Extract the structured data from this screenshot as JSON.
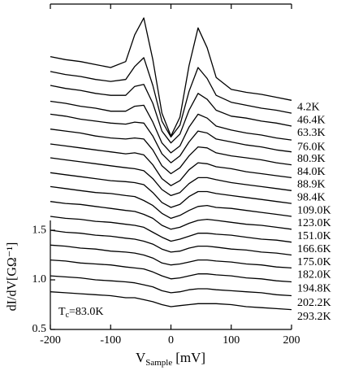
{
  "chart_data": {
    "type": "line",
    "x_label": {
      "text": "V",
      "subscript": "Sample",
      "unit": "[mV]"
    },
    "y_label": "dI/dV[GΩ⁻¹]",
    "annotation": {
      "text": "T",
      "subscript": "c",
      "rest": "=83.0K"
    },
    "x": [
      -200,
      -175,
      -150,
      -125,
      -100,
      -75,
      -60,
      -45,
      -30,
      -15,
      0,
      15,
      30,
      45,
      60,
      75,
      100,
      125,
      150,
      175,
      200
    ],
    "xlim": [
      -200,
      200
    ],
    "xticks": [
      -200,
      -100,
      0,
      100,
      200
    ],
    "ylim": [
      0.5,
      3.78
    ],
    "yticks": [
      0.5,
      {
        "value": 1,
        "label": "1.0"
      },
      1.5
    ],
    "series": [
      {
        "name": "4.2K",
        "color": "#000000",
        "values": [
          3.25,
          3.22,
          3.2,
          3.17,
          3.14,
          3.2,
          3.47,
          3.64,
          3.22,
          2.68,
          2.45,
          2.64,
          3.16,
          3.54,
          3.34,
          3.04,
          2.92,
          2.89,
          2.87,
          2.84,
          2.81
        ]
      },
      {
        "name": "46.4K",
        "color": "#000000",
        "values": [
          3.1,
          3.07,
          3.05,
          3.02,
          3.0,
          3.02,
          3.15,
          3.24,
          2.96,
          2.6,
          2.44,
          2.56,
          2.9,
          3.14,
          3.03,
          2.86,
          2.79,
          2.76,
          2.73,
          2.71,
          2.68
        ]
      },
      {
        "name": "63.3K",
        "color": "#000000",
        "values": [
          2.96,
          2.93,
          2.91,
          2.88,
          2.86,
          2.86,
          2.95,
          2.97,
          2.78,
          2.5,
          2.38,
          2.47,
          2.71,
          2.88,
          2.82,
          2.71,
          2.65,
          2.63,
          2.6,
          2.58,
          2.55
        ]
      },
      {
        "name": "76.0K",
        "color": "#000000",
        "values": [
          2.8,
          2.78,
          2.75,
          2.73,
          2.7,
          2.7,
          2.75,
          2.76,
          2.59,
          2.38,
          2.28,
          2.35,
          2.54,
          2.67,
          2.63,
          2.55,
          2.51,
          2.48,
          2.46,
          2.43,
          2.41
        ]
      },
      {
        "name": "80.9K",
        "color": "#000000",
        "values": [
          2.67,
          2.65,
          2.62,
          2.6,
          2.58,
          2.57,
          2.59,
          2.58,
          2.45,
          2.27,
          2.18,
          2.25,
          2.39,
          2.5,
          2.48,
          2.42,
          2.39,
          2.36,
          2.34,
          2.31,
          2.29
        ]
      },
      {
        "name": "84.0K",
        "color": "#000000",
        "values": [
          2.52,
          2.5,
          2.48,
          2.45,
          2.43,
          2.42,
          2.43,
          2.42,
          2.31,
          2.15,
          2.07,
          2.13,
          2.25,
          2.34,
          2.33,
          2.28,
          2.25,
          2.23,
          2.21,
          2.18,
          2.16
        ]
      },
      {
        "name": "88.9K",
        "color": "#000000",
        "values": [
          2.37,
          2.35,
          2.33,
          2.31,
          2.29,
          2.27,
          2.28,
          2.26,
          2.16,
          2.02,
          1.95,
          2.0,
          2.11,
          2.18,
          2.17,
          2.14,
          2.12,
          2.09,
          2.07,
          2.05,
          2.03
        ]
      },
      {
        "name": "98.4K",
        "color": "#000000",
        "values": [
          2.23,
          2.21,
          2.19,
          2.17,
          2.15,
          2.13,
          2.12,
          2.1,
          2.02,
          1.91,
          1.85,
          1.88,
          1.97,
          2.03,
          2.03,
          2.01,
          1.98,
          1.96,
          1.94,
          1.92,
          1.9
        ]
      },
      {
        "name": "109.0K",
        "color": "#000000",
        "values": [
          2.08,
          2.06,
          2.04,
          2.02,
          2.0,
          1.99,
          1.98,
          1.96,
          1.88,
          1.78,
          1.73,
          1.76,
          1.84,
          1.89,
          1.89,
          1.87,
          1.85,
          1.83,
          1.81,
          1.79,
          1.77
        ]
      },
      {
        "name": "123.0K",
        "color": "#000000",
        "values": [
          1.94,
          1.92,
          1.9,
          1.88,
          1.87,
          1.85,
          1.84,
          1.8,
          1.75,
          1.67,
          1.62,
          1.65,
          1.7,
          1.74,
          1.75,
          1.73,
          1.72,
          1.7,
          1.68,
          1.66,
          1.64
        ]
      },
      {
        "name": "151.0K",
        "color": "#000000",
        "values": [
          1.79,
          1.77,
          1.76,
          1.74,
          1.72,
          1.7,
          1.69,
          1.66,
          1.62,
          1.55,
          1.51,
          1.53,
          1.57,
          1.6,
          1.61,
          1.6,
          1.58,
          1.56,
          1.55,
          1.53,
          1.51
        ]
      },
      {
        "name": "166.6K",
        "color": "#000000",
        "values": [
          1.64,
          1.62,
          1.61,
          1.59,
          1.58,
          1.56,
          1.55,
          1.53,
          1.48,
          1.43,
          1.39,
          1.41,
          1.44,
          1.47,
          1.47,
          1.46,
          1.45,
          1.43,
          1.41,
          1.4,
          1.38
        ]
      },
      {
        "name": "175.0K",
        "color": "#000000",
        "values": [
          1.5,
          1.48,
          1.47,
          1.45,
          1.44,
          1.42,
          1.41,
          1.39,
          1.36,
          1.31,
          1.28,
          1.29,
          1.32,
          1.34,
          1.34,
          1.33,
          1.31,
          1.3,
          1.28,
          1.27,
          1.25
        ]
      },
      {
        "name": "182.0K",
        "color": "#000000",
        "values": [
          1.35,
          1.34,
          1.32,
          1.31,
          1.29,
          1.28,
          1.27,
          1.25,
          1.22,
          1.17,
          1.15,
          1.16,
          1.18,
          1.2,
          1.2,
          1.19,
          1.18,
          1.16,
          1.15,
          1.13,
          1.12
        ]
      },
      {
        "name": "194.8K",
        "color": "#000000",
        "values": [
          1.2,
          1.19,
          1.17,
          1.16,
          1.15,
          1.13,
          1.12,
          1.11,
          1.08,
          1.04,
          1.01,
          1.02,
          1.04,
          1.06,
          1.06,
          1.05,
          1.04,
          1.02,
          1.01,
          0.99,
          0.98
        ]
      },
      {
        "name": "202.2K",
        "color": "#000000",
        "values": [
          1.04,
          1.03,
          1.02,
          1.0,
          0.99,
          0.98,
          0.97,
          0.95,
          0.93,
          0.89,
          0.87,
          0.88,
          0.9,
          0.91,
          0.91,
          0.9,
          0.89,
          0.88,
          0.87,
          0.85,
          0.84
        ]
      },
      {
        "name": "293.2K",
        "color": "#000000",
        "values": [
          0.88,
          0.87,
          0.86,
          0.85,
          0.84,
          0.82,
          0.82,
          0.8,
          0.78,
          0.75,
          0.73,
          0.74,
          0.75,
          0.76,
          0.76,
          0.76,
          0.75,
          0.73,
          0.72,
          0.71,
          0.7
        ]
      }
    ]
  }
}
